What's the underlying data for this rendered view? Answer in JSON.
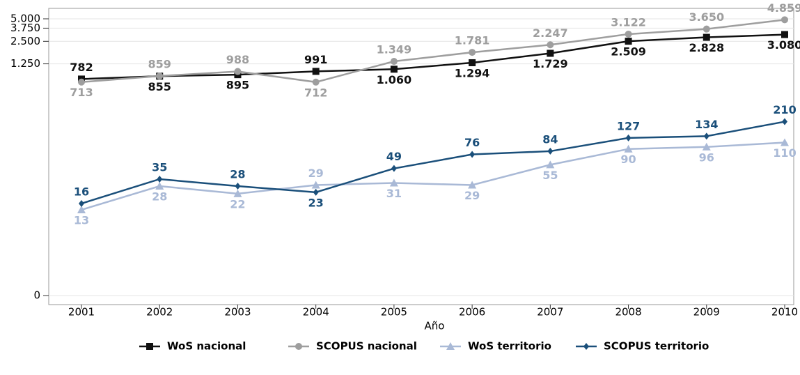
{
  "chart_data": {
    "type": "line",
    "x_label": "Año",
    "categories": [
      "2001",
      "2002",
      "2003",
      "2004",
      "2005",
      "2006",
      "2007",
      "2008",
      "2009",
      "2010"
    ],
    "yscale": "log1p",
    "ylim": [
      0,
      5000
    ],
    "yticks": [
      0,
      {
        "value": 1250,
        "label": "1.250"
      },
      {
        "value": 2500,
        "label": "2.500"
      },
      {
        "value": 3750,
        "label": "3.750"
      },
      {
        "value": 5000,
        "label": "5.000"
      }
    ],
    "grid": true,
    "legend": "bottom",
    "series": [
      {
        "name": "WoS nacional",
        "color": "#111111",
        "marker": "square",
        "values": [
          782,
          855,
          895,
          991,
          1060,
          1294,
          1729,
          2509,
          2828,
          3080
        ],
        "value_labels": [
          "782",
          "855",
          "895",
          "991",
          "1.060",
          "1.294",
          "1.729",
          "2.509",
          "2.828",
          "3.080"
        ]
      },
      {
        "name": "SCOPUS nacional",
        "color": "#9e9e9e",
        "marker": "circle",
        "values": [
          713,
          859,
          988,
          712,
          1349,
          1781,
          2247,
          3122,
          3650,
          4859
        ],
        "value_labels": [
          "713",
          "859",
          "988",
          "712",
          "1.349",
          "1.781",
          "2.247",
          "3.122",
          "3.650",
          "4.859"
        ]
      },
      {
        "name": "WoS territorio",
        "color": "#a9b9d6",
        "marker": "triangle",
        "values": [
          13,
          28,
          22,
          29,
          31,
          29,
          55,
          90,
          96,
          110
        ]
      },
      {
        "name": "SCOPUS territorio",
        "color": "#1a4f7a",
        "marker": "diamond",
        "values": [
          16,
          35,
          28,
          23,
          49,
          76,
          84,
          127,
          134,
          210
        ]
      }
    ]
  }
}
